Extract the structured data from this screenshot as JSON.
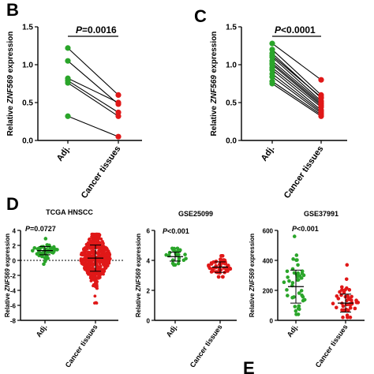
{
  "panel_labels": {
    "b": "B",
    "c": "C",
    "d": "D",
    "e": "E"
  },
  "colors": {
    "adjacent": "#2aa52a",
    "cancer": "#e01818",
    "pair_line": "#000000"
  },
  "chart_data": [
    {
      "id": "B",
      "type": "scatter",
      "subtype": "paired",
      "ylabel": "Relative ZNF569 expression",
      "ylim": [
        0,
        1.5
      ],
      "yticks": [
        0.0,
        0.5,
        1.0,
        1.5
      ],
      "ytick_labels": [
        "0.0",
        "0.5",
        "1.0",
        "1.5"
      ],
      "categories": [
        "Adj.",
        "Cancer tissues"
      ],
      "p_value": "P=0.0016",
      "pairs": [
        [
          1.22,
          0.6
        ],
        [
          1.05,
          0.48
        ],
        [
          0.82,
          0.5
        ],
        [
          0.79,
          0.37
        ],
        [
          0.76,
          0.32
        ],
        [
          0.32,
          0.05
        ]
      ]
    },
    {
      "id": "C",
      "type": "scatter",
      "subtype": "paired",
      "ylabel": "Relative ZNF569 expression",
      "ylim": [
        0,
        1.5
      ],
      "yticks": [
        0.0,
        0.5,
        1.0,
        1.5
      ],
      "ytick_labels": [
        "0.0",
        "0.5",
        "1.0",
        "1.5"
      ],
      "categories": [
        "Adj.",
        "Cancer tissues"
      ],
      "p_value": "P<0.0001",
      "pairs": [
        [
          1.28,
          0.8
        ],
        [
          1.2,
          0.6
        ],
        [
          1.15,
          0.56
        ],
        [
          1.1,
          0.52
        ],
        [
          1.05,
          0.5
        ],
        [
          1.02,
          0.48
        ],
        [
          1.0,
          0.46
        ],
        [
          0.96,
          0.44
        ],
        [
          0.93,
          0.4
        ],
        [
          0.88,
          0.38
        ],
        [
          0.84,
          0.36
        ],
        [
          0.78,
          0.34
        ],
        [
          0.75,
          0.32
        ],
        [
          1.12,
          0.57
        ]
      ]
    },
    {
      "id": "D1",
      "type": "scatter",
      "subtype": "dot-column",
      "title": "TCGA HNSCC",
      "ylabel": "Relative ZNF569 expression",
      "ylim": [
        -8,
        4
      ],
      "yticks": [
        -8,
        -6,
        -4,
        -2,
        0,
        2,
        4
      ],
      "ytick_labels": [
        "-8",
        "-6",
        "-4",
        "-2",
        "0",
        "2",
        "4"
      ],
      "categories": [
        "Adj.",
        "Cancer tissues"
      ],
      "p_value": "P=0.0727",
      "dashed_zero_line": true,
      "groups": [
        {
          "name": "Adj.",
          "mean": 1.3,
          "sd": 0.55,
          "n": 44,
          "min": -0.5,
          "max": 2.9
        },
        {
          "name": "Cancer tissues",
          "mean": 0.3,
          "sd": 1.75,
          "n": 500,
          "min": -5.7,
          "max": 3.5
        }
      ]
    },
    {
      "id": "D2",
      "type": "scatter",
      "subtype": "dot-column",
      "title": "GSE25099",
      "ylabel": "Relative ZNF569 expression",
      "ylim": [
        0,
        6
      ],
      "yticks": [
        0,
        2,
        4,
        6
      ],
      "ytick_labels": [
        "0",
        "2",
        "4",
        "6"
      ],
      "categories": [
        "Adj.",
        "Cancer tissues"
      ],
      "p_value": "P<0.001",
      "groups": [
        {
          "name": "Adj.",
          "mean": 4.25,
          "sd": 0.3,
          "n": 22,
          "min": 3.7,
          "max": 4.8
        },
        {
          "name": "Cancer tissues",
          "mean": 3.55,
          "sd": 0.35,
          "n": 57,
          "min": 2.9,
          "max": 4.3
        }
      ]
    },
    {
      "id": "D3",
      "type": "scatter",
      "subtype": "dot-column",
      "title": "GSE37991",
      "ylabel": "Relative ZNF569 expression",
      "ylim": [
        0,
        600
      ],
      "yticks": [
        0,
        200,
        400,
        600
      ],
      "ytick_labels": [
        "0",
        "200",
        "400",
        "600"
      ],
      "categories": [
        "Adj.",
        "Cancer tissues"
      ],
      "p_value": "P<0.001",
      "groups": [
        {
          "name": "Adj.",
          "mean": 225,
          "sd": 110,
          "n": 40,
          "min": 40,
          "max": 560
        },
        {
          "name": "Cancer tissues",
          "mean": 115,
          "sd": 60,
          "n": 40,
          "min": 20,
          "max": 370
        }
      ]
    }
  ]
}
